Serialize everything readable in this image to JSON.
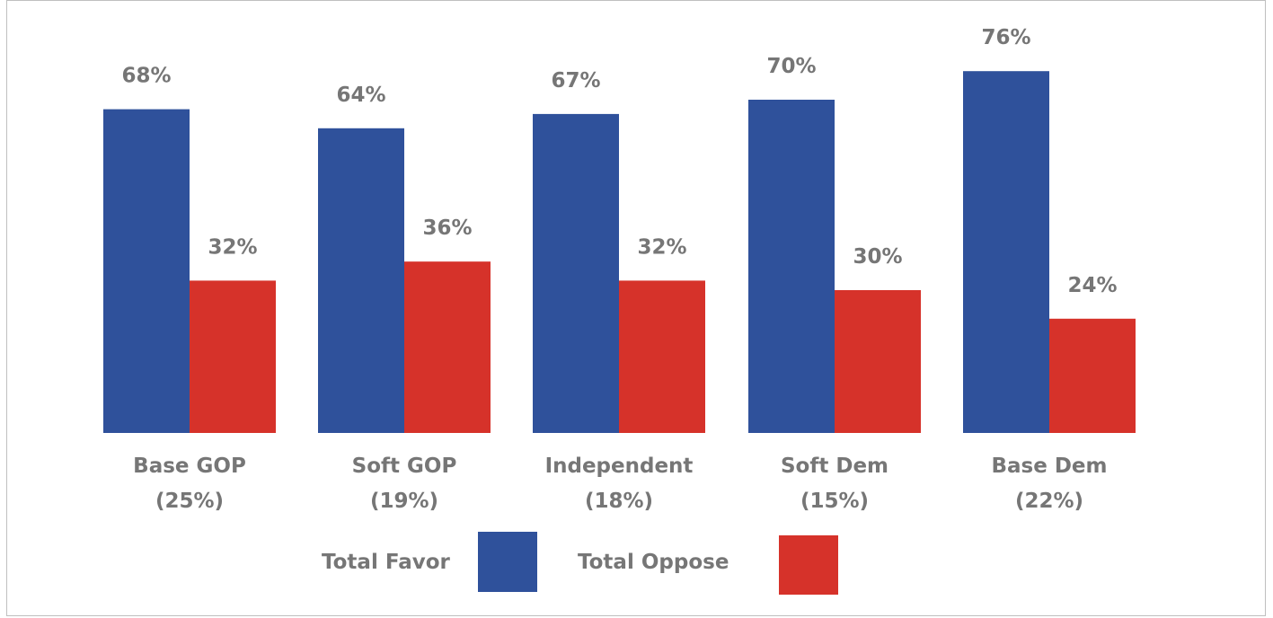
{
  "chart_data": {
    "type": "bar",
    "categories": [
      [
        "Base GOP",
        "(25%)"
      ],
      [
        "Soft GOP",
        "(19%)"
      ],
      [
        "Independent",
        "(18%)"
      ],
      [
        "Soft Dem",
        "(15%)"
      ],
      [
        "Base Dem",
        "(22%)"
      ]
    ],
    "series": [
      {
        "name": "Total Favor",
        "color": "#2f519b",
        "values": [
          68,
          64,
          67,
          70,
          76
        ],
        "labels": [
          "68%",
          "64%",
          "67%",
          "70%",
          "76%"
        ]
      },
      {
        "name": "Total Oppose",
        "color": "#d6322a",
        "values": [
          32,
          36,
          32,
          30,
          24
        ],
        "labels": [
          "32%",
          "36%",
          "32%",
          "30%",
          "24%"
        ]
      }
    ],
    "ylim": [
      0,
      76
    ],
    "grid": false,
    "legend_position": "bottom"
  }
}
